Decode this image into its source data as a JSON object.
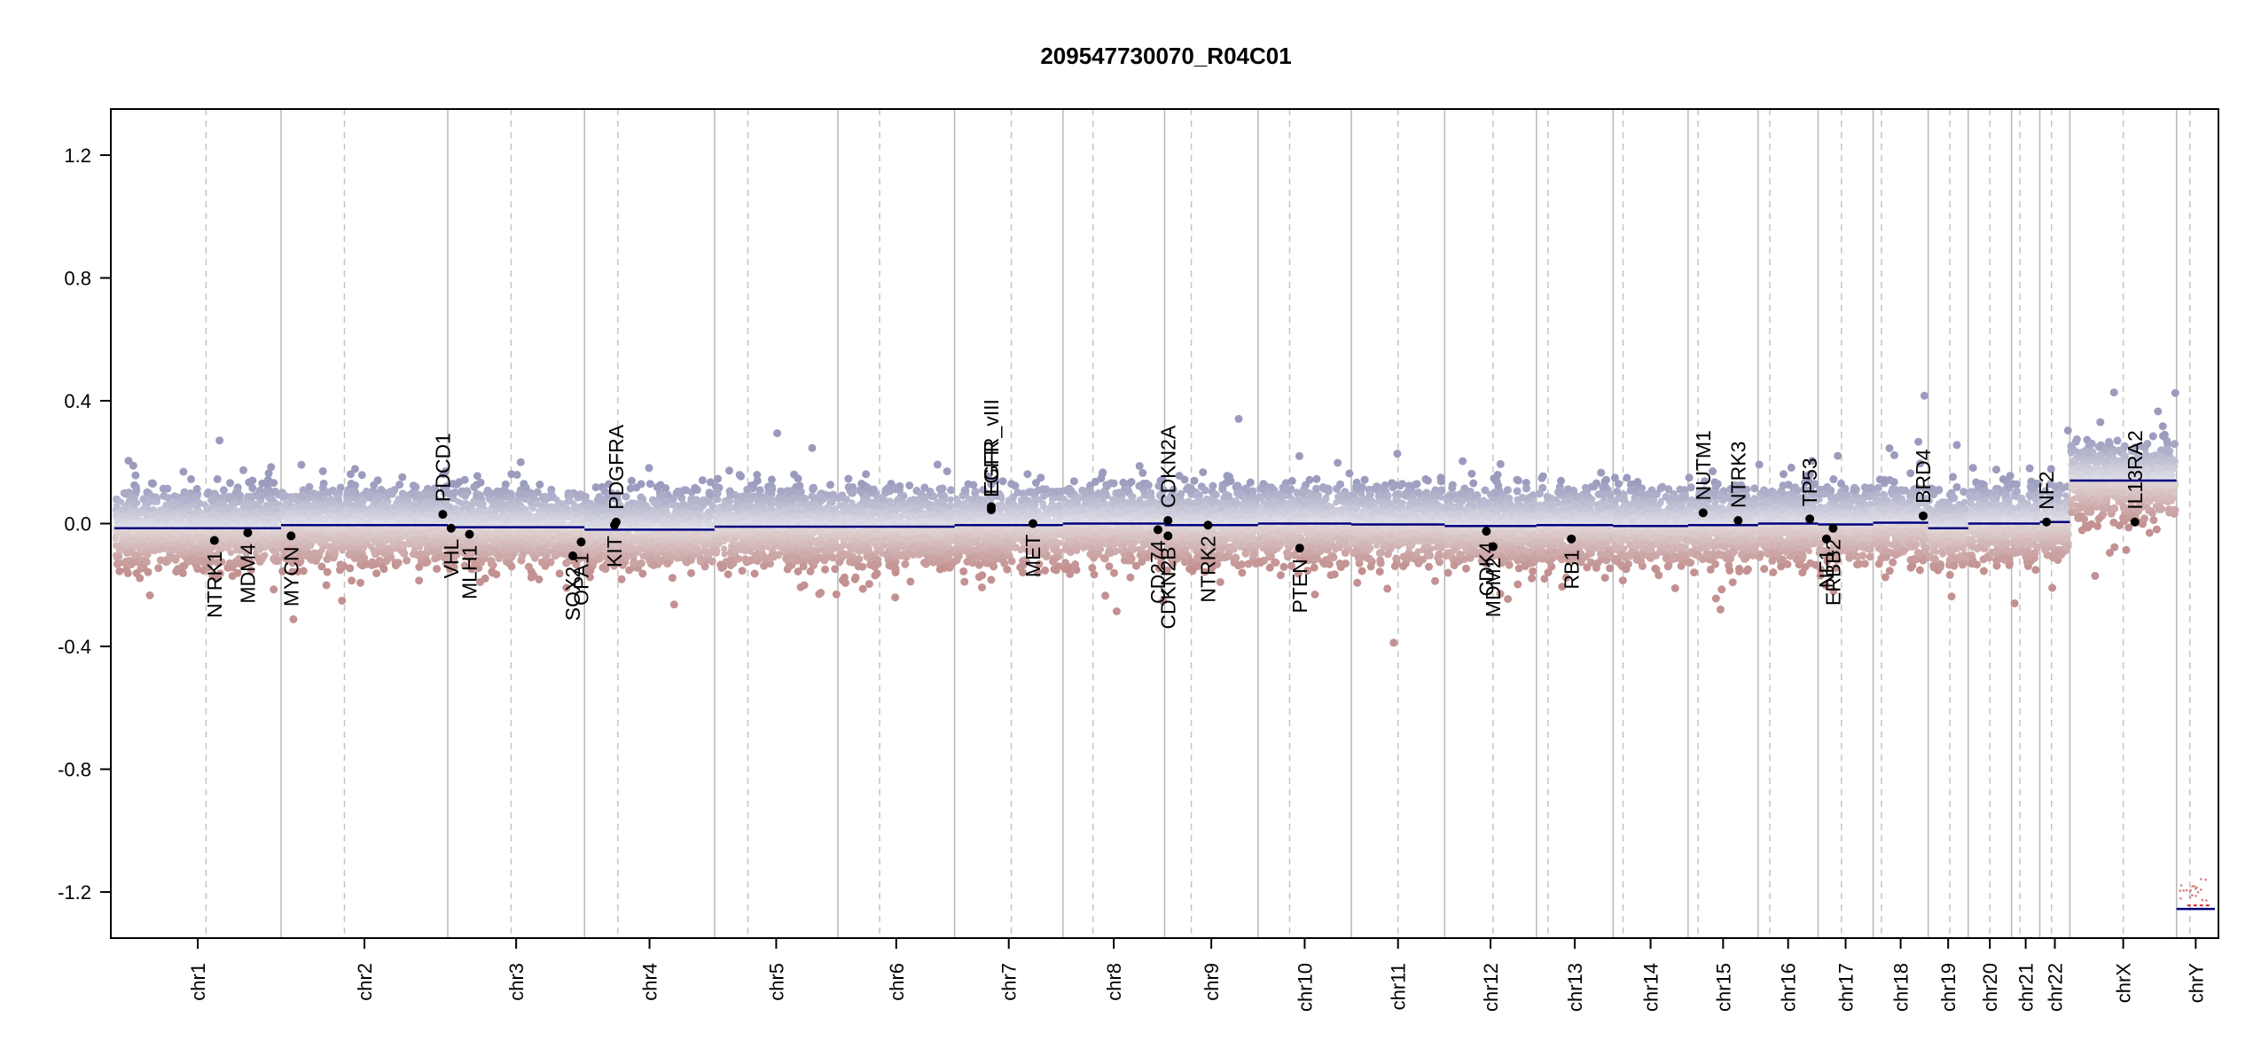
{
  "chart_data": {
    "type": "scatter",
    "title": "209547730070_R04C01",
    "xlabel": "",
    "ylabel": "",
    "ylim": [
      -1.35,
      1.35
    ],
    "y_ticks": [
      1.2,
      0.8,
      0.4,
      0.0,
      -0.4,
      -0.8,
      -1.2
    ],
    "y_tick_labels": [
      "1.2",
      "0.8",
      "0.4",
      "0.0",
      "-0.4",
      "-0.8",
      "-1.2"
    ],
    "chromosomes": [
      {
        "name": "chr1",
        "start": 0,
        "end": 100
      },
      {
        "name": "chr2",
        "start": 100,
        "end": 200
      },
      {
        "name": "chr3",
        "start": 200,
        "end": 282
      },
      {
        "name": "chr4",
        "start": 282,
        "end": 360
      },
      {
        "name": "chr5",
        "start": 360,
        "end": 434
      },
      {
        "name": "chr6",
        "start": 434,
        "end": 504
      },
      {
        "name": "chr7",
        "start": 504,
        "end": 569
      },
      {
        "name": "chr8",
        "start": 569,
        "end": 630
      },
      {
        "name": "chr9",
        "start": 630,
        "end": 686
      },
      {
        "name": "chr10",
        "start": 686,
        "end": 742
      },
      {
        "name": "chr11",
        "start": 742,
        "end": 798
      },
      {
        "name": "chr12",
        "start": 798,
        "end": 853
      },
      {
        "name": "chr13",
        "start": 853,
        "end": 899
      },
      {
        "name": "chr14",
        "start": 899,
        "end": 944
      },
      {
        "name": "chr15",
        "start": 944,
        "end": 986
      },
      {
        "name": "chr16",
        "start": 986,
        "end": 1022
      },
      {
        "name": "chr17",
        "start": 1022,
        "end": 1055
      },
      {
        "name": "chr18",
        "start": 1055,
        "end": 1088
      },
      {
        "name": "chr19",
        "start": 1088,
        "end": 1112
      },
      {
        "name": "chr20",
        "start": 1112,
        "end": 1138
      },
      {
        "name": "chr21",
        "start": 1138,
        "end": 1155
      },
      {
        "name": "chr22",
        "start": 1155,
        "end": 1173
      },
      {
        "name": "chrX",
        "start": 1173,
        "end": 1237
      },
      {
        "name": "chrY",
        "start": 1237,
        "end": 1260
      }
    ],
    "centromeres": [
      55,
      138,
      238,
      302,
      380,
      459,
      538,
      587,
      646,
      705,
      770,
      827,
      860,
      905,
      950,
      993,
      1036,
      1060,
      1101,
      1125,
      1143,
      1162,
      1205,
      1245
    ],
    "segments": [
      {
        "x0": 0,
        "x1": 100,
        "y": -0.015
      },
      {
        "x0": 100,
        "x1": 200,
        "y": -0.005
      },
      {
        "x0": 200,
        "x1": 282,
        "y": -0.012
      },
      {
        "x0": 282,
        "x1": 360,
        "y": -0.02
      },
      {
        "x0": 360,
        "x1": 434,
        "y": -0.01
      },
      {
        "x0": 434,
        "x1": 504,
        "y": -0.01
      },
      {
        "x0": 504,
        "x1": 569,
        "y": -0.005
      },
      {
        "x0": 569,
        "x1": 630,
        "y": 0.0
      },
      {
        "x0": 630,
        "x1": 686,
        "y": -0.005
      },
      {
        "x0": 686,
        "x1": 742,
        "y": 0.0
      },
      {
        "x0": 742,
        "x1": 798,
        "y": -0.003
      },
      {
        "x0": 798,
        "x1": 853,
        "y": -0.008
      },
      {
        "x0": 853,
        "x1": 899,
        "y": -0.005
      },
      {
        "x0": 899,
        "x1": 944,
        "y": -0.008
      },
      {
        "x0": 944,
        "x1": 986,
        "y": -0.005
      },
      {
        "x0": 986,
        "x1": 1022,
        "y": 0.0
      },
      {
        "x0": 1022,
        "x1": 1055,
        "y": -0.003
      },
      {
        "x0": 1055,
        "x1": 1088,
        "y": 0.003
      },
      {
        "x0": 1088,
        "x1": 1112,
        "y": -0.015
      },
      {
        "x0": 1112,
        "x1": 1138,
        "y": 0.0
      },
      {
        "x0": 1138,
        "x1": 1155,
        "y": 0.0
      },
      {
        "x0": 1155,
        "x1": 1173,
        "y": 0.005
      },
      {
        "x0": 1173,
        "x1": 1237,
        "y": 0.14
      },
      {
        "x0": 1237,
        "x1": 1260,
        "y": -1.255
      }
    ],
    "genes": [
      {
        "name": "NTRK1",
        "x": 60,
        "y": -0.055,
        "label_side": "below"
      },
      {
        "name": "MDM4",
        "x": 80,
        "y": -0.03,
        "label_side": "below"
      },
      {
        "name": "MYCN",
        "x": 106,
        "y": -0.04,
        "label_side": "below"
      },
      {
        "name": "PDCD1",
        "x": 197,
        "y": 0.03,
        "label_side": "above"
      },
      {
        "name": "VHL",
        "x": 202,
        "y": -0.015,
        "label_side": "below"
      },
      {
        "name": "MLH1",
        "x": 213,
        "y": -0.035,
        "label_side": "below"
      },
      {
        "name": "SOX2",
        "x": 275,
        "y": -0.105,
        "label_side": "below"
      },
      {
        "name": "OPA1",
        "x": 280,
        "y": -0.06,
        "label_side": "below"
      },
      {
        "name": "KIT",
        "x": 300,
        "y": -0.005,
        "label_side": "below"
      },
      {
        "name": "PDGFRA",
        "x": 301,
        "y": 0.005,
        "label_side": "above"
      },
      {
        "name": "EGFR_vIII",
        "x": 526,
        "y": 0.055,
        "label_side": "above"
      },
      {
        "name": "EGFR",
        "x": 526,
        "y": 0.045,
        "label_side": "above"
      },
      {
        "name": "MET",
        "x": 551,
        "y": 0.0,
        "label_side": "below"
      },
      {
        "name": "CDKN2A",
        "x": 632,
        "y": 0.01,
        "label_side": "above"
      },
      {
        "name": "CD274",
        "x": 626,
        "y": -0.02,
        "label_side": "below"
      },
      {
        "name": "CDKN2B",
        "x": 632,
        "y": -0.04,
        "label_side": "below"
      },
      {
        "name": "NTRK2",
        "x": 656,
        "y": -0.005,
        "label_side": "below"
      },
      {
        "name": "PTEN",
        "x": 711,
        "y": -0.08,
        "label_side": "below"
      },
      {
        "name": "CDK4",
        "x": 823,
        "y": -0.025,
        "label_side": "below"
      },
      {
        "name": "MDM2",
        "x": 827,
        "y": -0.075,
        "label_side": "below"
      },
      {
        "name": "RB1",
        "x": 874,
        "y": -0.05,
        "label_side": "below"
      },
      {
        "name": "NUTM1",
        "x": 953,
        "y": 0.035,
        "label_side": "above"
      },
      {
        "name": "NTRK3",
        "x": 974,
        "y": 0.01,
        "label_side": "above"
      },
      {
        "name": "TP53",
        "x": 1017,
        "y": 0.015,
        "label_side": "above"
      },
      {
        "name": "NF1",
        "x": 1027,
        "y": -0.05,
        "label_side": "below"
      },
      {
        "name": "ERBB2",
        "x": 1031,
        "y": -0.015,
        "label_side": "below"
      },
      {
        "name": "BRD4",
        "x": 1085,
        "y": 0.025,
        "label_side": "above"
      },
      {
        "name": "NF2",
        "x": 1159,
        "y": 0.005,
        "label_side": "above"
      },
      {
        "name": "IL13RA2",
        "x": 1212,
        "y": 0.005,
        "label_side": "above"
      }
    ],
    "grid": false,
    "legend": "none"
  }
}
